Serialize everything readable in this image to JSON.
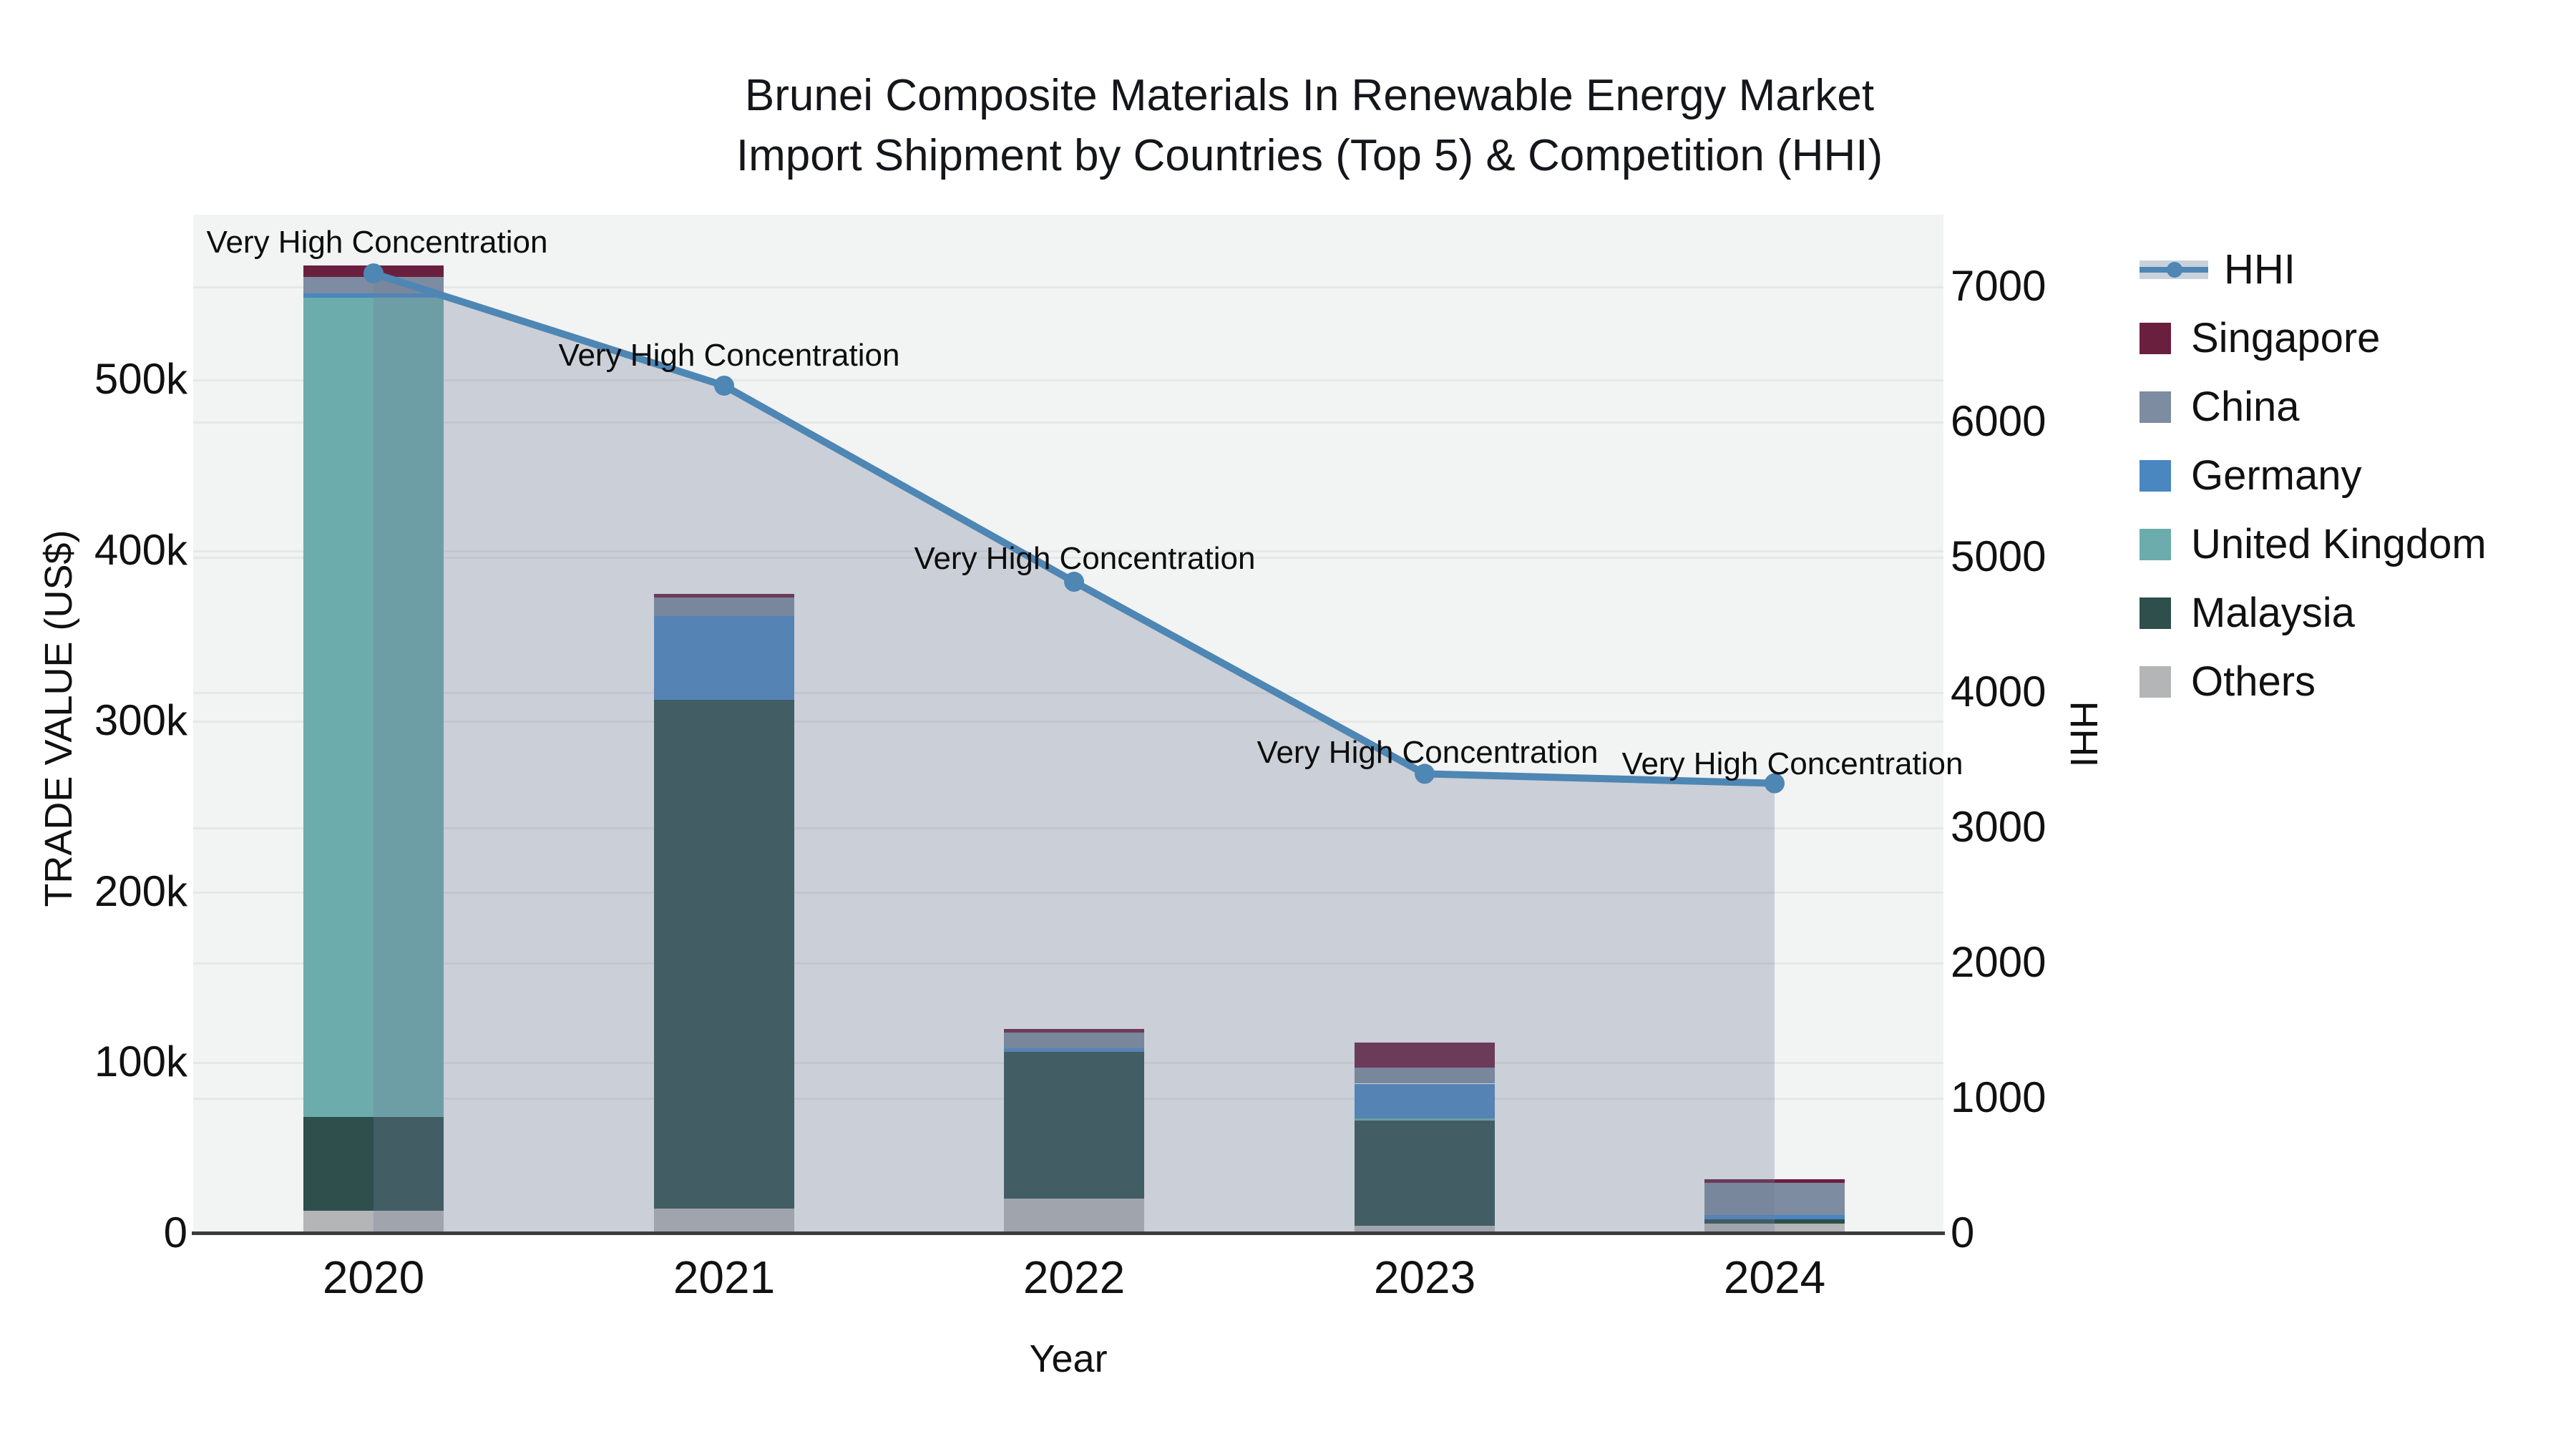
{
  "title": {
    "line1": "Brunei Composite Materials In Renewable Energy Market",
    "line2": "Import Shipment by Countries (Top 5) & Competition (HHI)"
  },
  "axes": {
    "x": {
      "title": "Year",
      "tick_labels": [
        "2020",
        "2021",
        "2022",
        "2023",
        "2024"
      ]
    },
    "y_left": {
      "title": "TRADE VALUE (US$)",
      "tick_labels": [
        "0",
        "100k",
        "200k",
        "300k",
        "400k",
        "500k"
      ],
      "tick_values": [
        0,
        100000,
        200000,
        300000,
        400000,
        500000
      ]
    },
    "y_right": {
      "title": "HHI",
      "tick_labels": [
        "0",
        "1000",
        "2000",
        "3000",
        "4000",
        "5000",
        "6000",
        "7000"
      ],
      "tick_values": [
        0,
        1000,
        2000,
        3000,
        4000,
        5000,
        6000,
        7000
      ]
    }
  },
  "legend": {
    "items": [
      {
        "label": "HHI",
        "type": "line",
        "color": "#4e86b4"
      },
      {
        "label": "Singapore",
        "type": "swatch",
        "color": "#6b1f3f"
      },
      {
        "label": "China",
        "type": "swatch",
        "color": "#7d8ca0"
      },
      {
        "label": "Germany",
        "type": "swatch",
        "color": "#4a86c0"
      },
      {
        "label": "United Kingdom",
        "type": "swatch",
        "color": "#6cacac"
      },
      {
        "label": "Malaysia",
        "type": "swatch",
        "color": "#2e4f4c"
      },
      {
        "label": "Others",
        "type": "swatch",
        "color": "#b3b5b6"
      }
    ]
  },
  "chart_data": {
    "type": "bar",
    "stacked": true,
    "title": "Brunei Composite Materials In Renewable Energy Market Import Shipment by Countries (Top 5) & Competition (HHI)",
    "xlabel": "Year",
    "ylabel_left": "TRADE VALUE (US$)",
    "ylabel_right": "HHI",
    "categories": [
      "2020",
      "2021",
      "2022",
      "2023",
      "2024"
    ],
    "series": [
      {
        "name": "Others",
        "color": "#b3b5b6",
        "values": [
          13400,
          14700,
          20700,
          4600,
          6000
        ]
      },
      {
        "name": "Malaysia",
        "color": "#2e4f4c",
        "values": [
          54900,
          298000,
          85900,
          61600,
          2400
        ]
      },
      {
        "name": "United Kingdom",
        "color": "#6cacac",
        "values": [
          479900,
          0,
          0,
          1300,
          0
        ]
      },
      {
        "name": "Germany",
        "color": "#4a86c0",
        "values": [
          2500,
          49000,
          2100,
          20300,
          2500
        ]
      },
      {
        "name": "China",
        "color": "#7d8ca0",
        "values": [
          9600,
          11000,
          9100,
          9500,
          18900
        ]
      },
      {
        "name": "Singapore",
        "color": "#6b1f3f",
        "values": [
          6700,
          2100,
          2100,
          14400,
          2100
        ]
      }
    ],
    "line_series": {
      "name": "HHI",
      "axis": "right",
      "color": "#4e86b4",
      "fill_color": "rgba(112,126,153,0.30)",
      "values": [
        7100,
        6270,
        4820,
        3400,
        3330
      ],
      "point_annotations": [
        "Very High Concentration",
        "Very High Concentration",
        "Very High Concentration",
        "Very High Concentration",
        "Very High Concentration"
      ]
    },
    "ylim_left": [
      0,
      597000
    ],
    "ylim_right": [
      0,
      7535
    ],
    "grid": true,
    "legend_position": "right"
  }
}
